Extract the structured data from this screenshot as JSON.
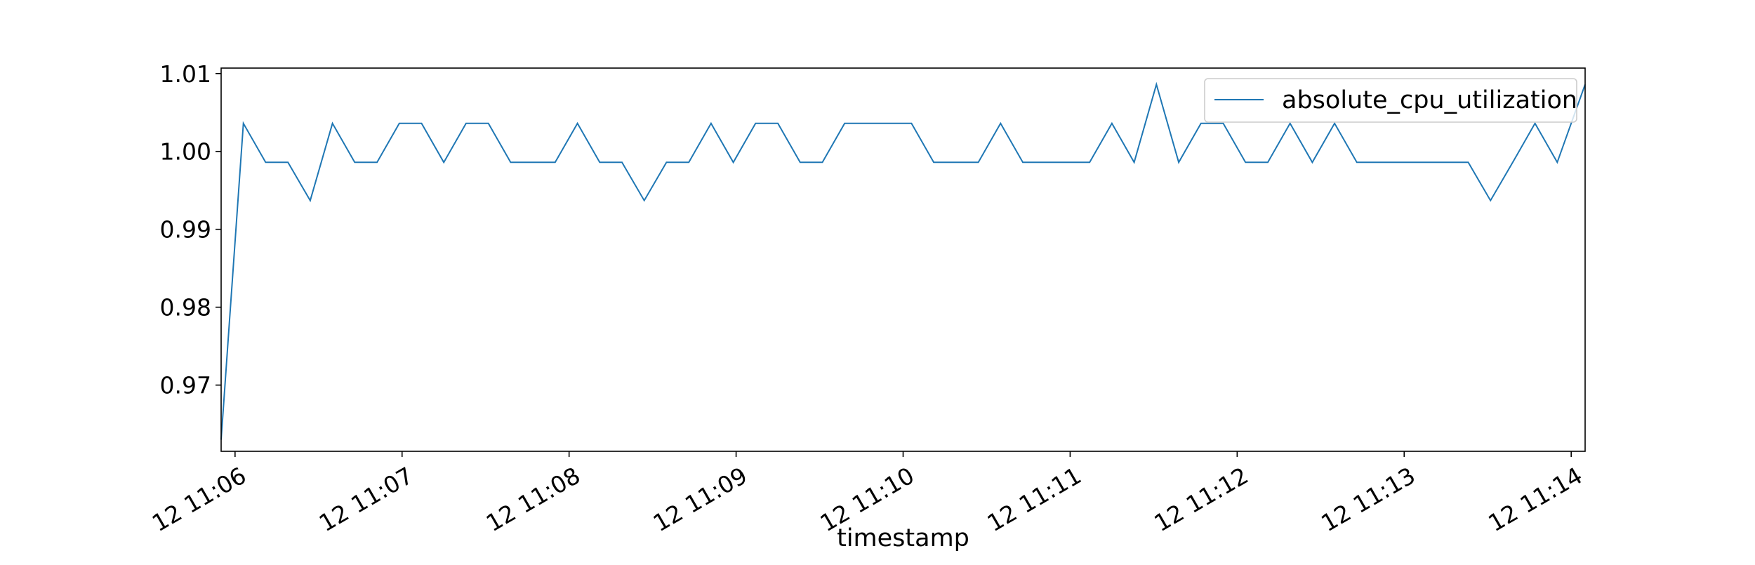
{
  "chart_data": {
    "type": "line",
    "title": "",
    "xlabel": "timestamp",
    "ylabel": "",
    "ylim": [
      0.9615,
      1.0107
    ],
    "xlim": [
      "11:05:55",
      "11:14:05"
    ],
    "x_ticks": [
      {
        "time": "11:06:00",
        "label": "12 11:06"
      },
      {
        "time": "11:07:00",
        "label": "12 11:07"
      },
      {
        "time": "11:08:00",
        "label": "12 11:08"
      },
      {
        "time": "11:09:00",
        "label": "12 11:09"
      },
      {
        "time": "11:10:00",
        "label": "12 11:10"
      },
      {
        "time": "11:11:00",
        "label": "12 11:11"
      },
      {
        "time": "11:12:00",
        "label": "12 11:12"
      },
      {
        "time": "11:13:00",
        "label": "12 11:13"
      },
      {
        "time": "11:14:00",
        "label": "12 11:14"
      }
    ],
    "y_ticks": [
      {
        "value": 0.97,
        "label": "0.97"
      },
      {
        "value": 0.98,
        "label": "0.98"
      },
      {
        "value": 0.99,
        "label": "0.99"
      },
      {
        "value": 1.0,
        "label": "1.00"
      },
      {
        "value": 1.01,
        "label": "1.01"
      }
    ],
    "grid": false,
    "legend": {
      "position": "top-right",
      "entries": [
        "absolute_cpu_utilization"
      ]
    },
    "series": [
      {
        "name": "absolute_cpu_utilization",
        "color": "#1f77b4",
        "x": [
          "11:05:55",
          "11:06:03",
          "11:06:11",
          "11:06:19",
          "11:06:27",
          "11:06:35",
          "11:06:43",
          "11:06:51",
          "11:06:59",
          "11:07:07",
          "11:07:15",
          "11:07:23",
          "11:07:31",
          "11:07:39",
          "11:07:47",
          "11:07:55",
          "11:08:03",
          "11:08:11",
          "11:08:19",
          "11:08:27",
          "11:08:35",
          "11:08:43",
          "11:08:51",
          "11:08:59",
          "11:09:07",
          "11:09:15",
          "11:09:23",
          "11:09:31",
          "11:09:39",
          "11:09:47",
          "11:09:55",
          "11:10:03",
          "11:10:11",
          "11:10:19",
          "11:10:27",
          "11:10:35",
          "11:10:43",
          "11:10:51",
          "11:10:59",
          "11:11:07",
          "11:11:15",
          "11:11:23",
          "11:11:31",
          "11:11:39",
          "11:11:47",
          "11:11:55",
          "11:12:03",
          "11:12:11",
          "11:12:19",
          "11:12:27",
          "11:12:35",
          "11:12:43",
          "11:12:51",
          "11:12:59",
          "11:13:07",
          "11:13:15",
          "11:13:23",
          "11:13:31",
          "11:13:39",
          "11:13:47",
          "11:13:55",
          "11:14:05"
        ],
        "y": [
          0.963,
          1.0036,
          0.9986,
          0.9986,
          0.9937,
          1.0036,
          0.9986,
          0.9986,
          1.0036,
          1.0036,
          0.9986,
          1.0036,
          1.0036,
          0.9986,
          0.9986,
          0.9986,
          1.0036,
          0.9986,
          0.9986,
          0.9937,
          0.9986,
          0.9986,
          1.0036,
          0.9986,
          1.0036,
          1.0036,
          0.9986,
          0.9986,
          1.0036,
          1.0036,
          1.0036,
          1.0036,
          0.9986,
          0.9986,
          0.9986,
          1.0036,
          0.9986,
          0.9986,
          0.9986,
          0.9986,
          1.0036,
          0.9986,
          1.0086,
          0.9986,
          1.0036,
          1.0036,
          0.9986,
          0.9986,
          1.0036,
          0.9986,
          1.0036,
          0.9986,
          0.9986,
          0.9986,
          0.9986,
          0.9986,
          0.9986,
          0.9937,
          0.9986,
          1.0036,
          0.9986,
          1.0086
        ]
      }
    ]
  }
}
